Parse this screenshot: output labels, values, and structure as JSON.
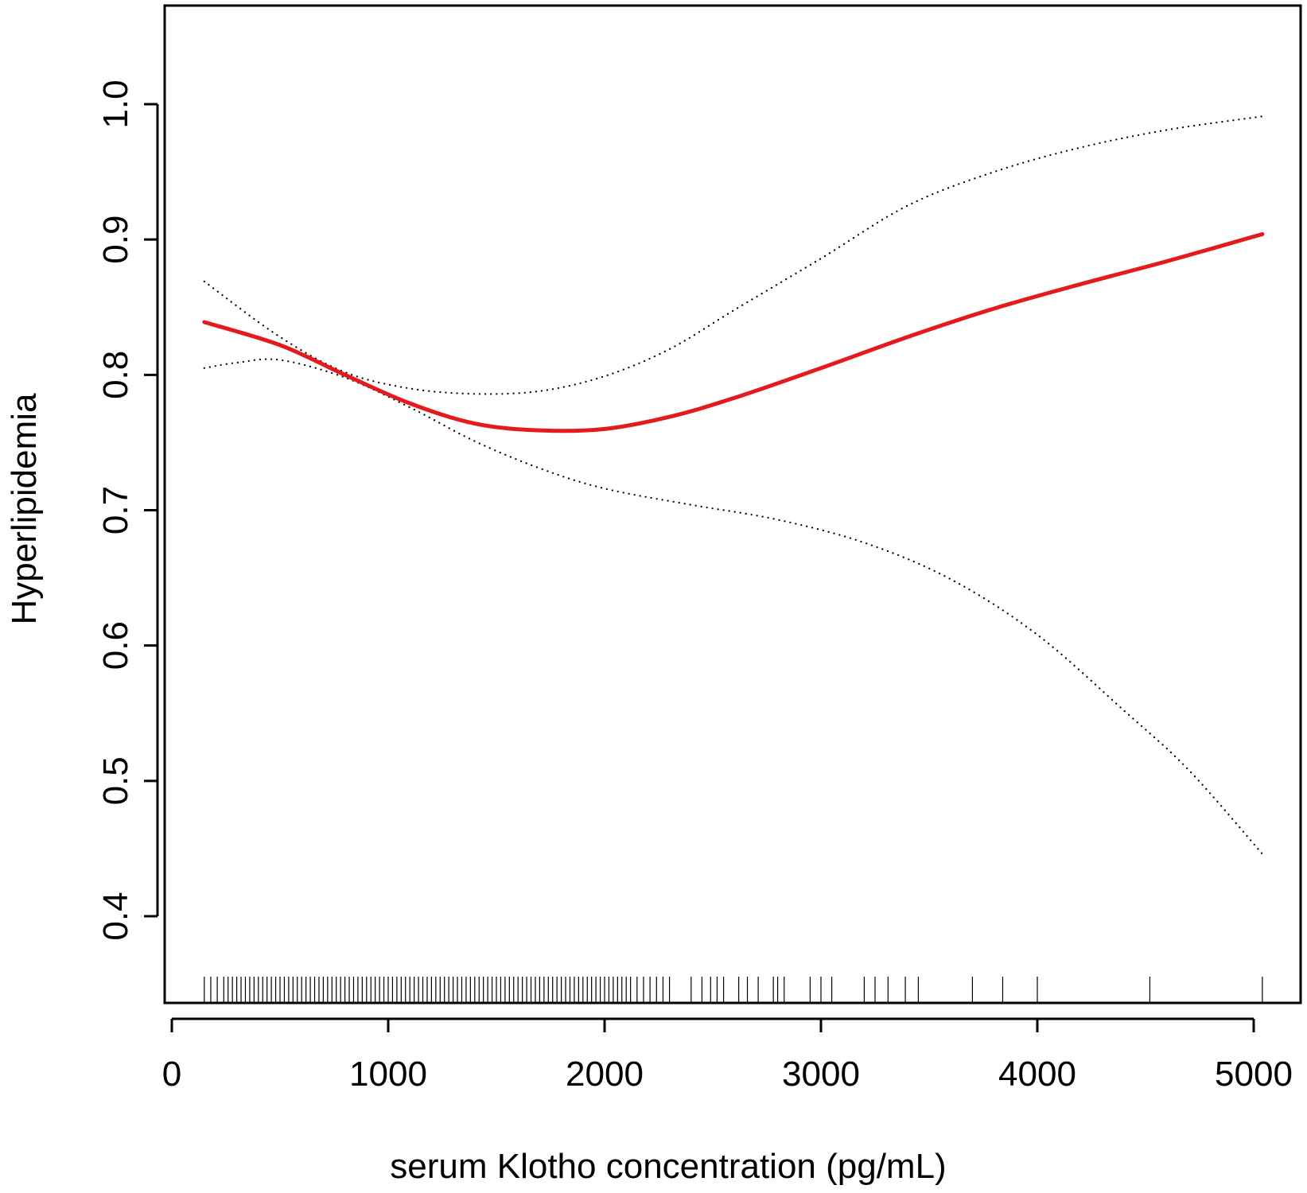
{
  "chart_data": {
    "type": "line",
    "title": "",
    "xlabel": "serum Klotho concentration (pg/mL)",
    "ylabel": "Hyperlipidemia",
    "xlim": [
      0,
      5200
    ],
    "ylim": [
      0.34,
      1.07
    ],
    "x_ticks": [
      0,
      1000,
      2000,
      3000,
      4000,
      5000
    ],
    "x_tick_labels": [
      "0",
      "1000",
      "2000",
      "3000",
      "4000",
      "5000"
    ],
    "y_ticks": [
      0.4,
      0.5,
      0.6,
      0.7,
      0.8,
      0.9,
      1.0
    ],
    "y_tick_labels": [
      "0.4",
      "0.5",
      "0.6",
      "0.7",
      "0.8",
      "0.9",
      "1.0"
    ],
    "grid": false,
    "series": [
      {
        "role": "estimate",
        "color": "#e41a1c",
        "style": "solid",
        "x": [
          150,
          500,
          800,
          1100,
          1400,
          1700,
          2000,
          2300,
          2600,
          3000,
          3400,
          3800,
          4200,
          4600,
          5040
        ],
        "y": [
          0.839,
          0.822,
          0.8,
          0.779,
          0.764,
          0.759,
          0.76,
          0.769,
          0.783,
          0.805,
          0.828,
          0.849,
          0.867,
          0.884,
          0.904
        ]
      },
      {
        "role": "upper-ci",
        "color": "#000000",
        "style": "dotted",
        "x": [
          150,
          500,
          800,
          1100,
          1400,
          1700,
          2000,
          2300,
          2600,
          3000,
          3400,
          3800,
          4200,
          4600,
          5040
        ],
        "y": [
          0.869,
          0.828,
          0.802,
          0.79,
          0.786,
          0.788,
          0.799,
          0.819,
          0.848,
          0.886,
          0.925,
          0.95,
          0.968,
          0.981,
          0.991
        ]
      },
      {
        "role": "lower-ci",
        "color": "#000000",
        "style": "dotted",
        "x": [
          150,
          300,
          500,
          800,
          1100,
          1400,
          1700,
          2000,
          2400,
          2800,
          3200,
          3600,
          4000,
          4400,
          4700,
          5040
        ],
        "y": [
          0.805,
          0.809,
          0.811,
          0.798,
          0.776,
          0.751,
          0.731,
          0.716,
          0.704,
          0.693,
          0.676,
          0.649,
          0.608,
          0.552,
          0.508,
          0.446
        ]
      }
    ],
    "rug_x": [
      150,
      180,
      210,
      240,
      260,
      280,
      300,
      320,
      340,
      360,
      380,
      400,
      420,
      440,
      460,
      480,
      500,
      520,
      540,
      560,
      580,
      600,
      620,
      640,
      660,
      680,
      700,
      720,
      740,
      760,
      780,
      800,
      820,
      840,
      860,
      880,
      900,
      920,
      940,
      960,
      980,
      1000,
      1020,
      1040,
      1060,
      1080,
      1100,
      1120,
      1140,
      1160,
      1180,
      1200,
      1220,
      1240,
      1260,
      1280,
      1300,
      1320,
      1340,
      1360,
      1380,
      1400,
      1420,
      1440,
      1460,
      1480,
      1500,
      1520,
      1540,
      1560,
      1580,
      1600,
      1620,
      1640,
      1660,
      1680,
      1700,
      1720,
      1740,
      1760,
      1780,
      1800,
      1820,
      1840,
      1860,
      1880,
      1900,
      1920,
      1940,
      1960,
      1980,
      2000,
      2020,
      2040,
      2060,
      2080,
      2100,
      2120,
      2150,
      2180,
      2210,
      2240,
      2270,
      2300,
      2400,
      2450,
      2490,
      2520,
      2550,
      2620,
      2660,
      2710,
      2780,
      2800,
      2830,
      2950,
      3000,
      3050,
      3200,
      3250,
      3310,
      3390,
      3450,
      3700,
      3840,
      4000,
      4520,
      5040
    ]
  }
}
